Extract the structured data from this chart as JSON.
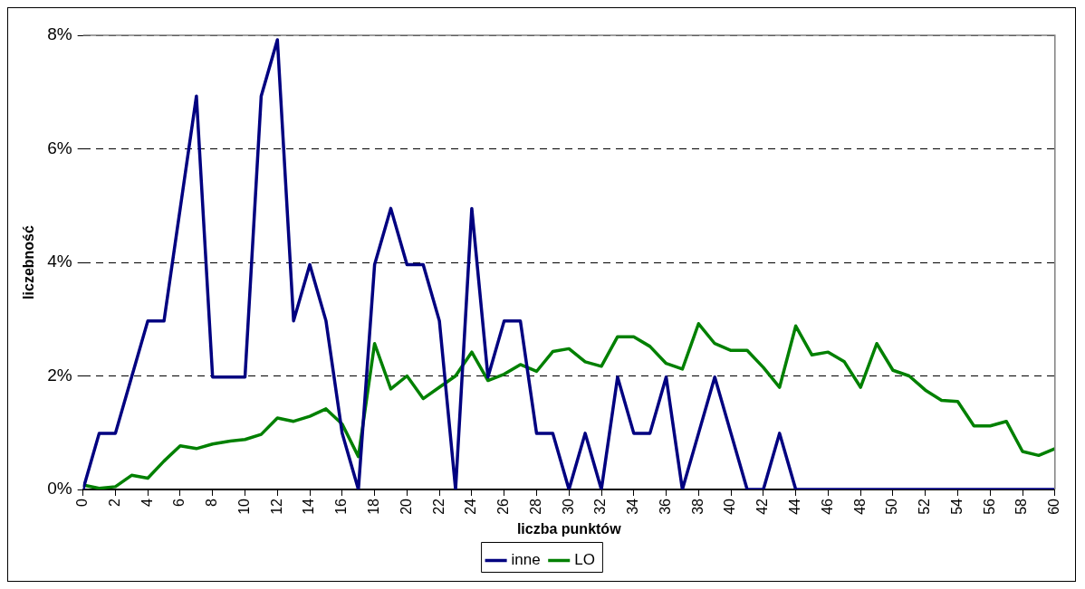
{
  "chart_data": {
    "type": "line",
    "xlabel": "liczba punktów",
    "ylabel": "liczebność",
    "x": [
      0,
      1,
      2,
      3,
      4,
      5,
      6,
      7,
      8,
      9,
      10,
      11,
      12,
      13,
      14,
      15,
      16,
      17,
      18,
      19,
      20,
      21,
      22,
      23,
      24,
      25,
      26,
      27,
      28,
      29,
      30,
      31,
      32,
      33,
      34,
      35,
      36,
      37,
      38,
      39,
      40,
      41,
      42,
      43,
      44,
      45,
      46,
      47,
      48,
      49,
      50,
      51,
      52,
      53,
      54,
      55,
      56,
      57,
      58,
      59,
      60
    ],
    "series": [
      {
        "name": "inne",
        "color": "#000080",
        "values": [
          0,
          0.99,
          0.99,
          1.98,
          2.97,
          2.97,
          4.95,
          6.93,
          1.98,
          1.98,
          1.98,
          6.93,
          7.92,
          2.97,
          3.96,
          2.97,
          0.99,
          0,
          3.96,
          4.95,
          3.96,
          3.96,
          2.97,
          0,
          4.95,
          1.98,
          2.97,
          2.97,
          0.99,
          0.99,
          0,
          0.99,
          0,
          1.98,
          0.99,
          0.99,
          1.98,
          0,
          0.99,
          1.98,
          0.99,
          0,
          0,
          0.99,
          0,
          0,
          0,
          0,
          0,
          0,
          0,
          0,
          0,
          0,
          0,
          0,
          0,
          0,
          0,
          0,
          0
        ]
      },
      {
        "name": "LO",
        "color": "#008000",
        "values": [
          0.08,
          0.02,
          0.05,
          0.25,
          0.2,
          0.5,
          0.77,
          0.72,
          0.8,
          0.85,
          0.88,
          0.97,
          1.26,
          1.2,
          1.29,
          1.42,
          1.15,
          0.58,
          2.57,
          1.77,
          2.0,
          1.6,
          1.8,
          2.0,
          2.42,
          1.92,
          2.03,
          2.2,
          2.08,
          2.43,
          2.48,
          2.25,
          2.17,
          2.69,
          2.69,
          2.52,
          2.22,
          2.12,
          2.92,
          2.57,
          2.45,
          2.45,
          2.15,
          1.8,
          2.88,
          2.37,
          2.42,
          2.25,
          1.8,
          2.57,
          2.1,
          2.0,
          1.75,
          1.57,
          1.55,
          1.12,
          1.12,
          1.2,
          0.67,
          0.6,
          0.72
        ]
      }
    ],
    "xlim": [
      0,
      60
    ],
    "xticks": [
      0,
      2,
      4,
      6,
      8,
      10,
      12,
      14,
      16,
      18,
      20,
      22,
      24,
      26,
      28,
      30,
      32,
      34,
      36,
      38,
      40,
      42,
      44,
      46,
      48,
      50,
      52,
      54,
      56,
      58,
      60
    ],
    "ylim": [
      0,
      8
    ],
    "yticks": [
      {
        "value": 0,
        "label": "0%"
      },
      {
        "value": 2,
        "label": "2%"
      },
      {
        "value": 4,
        "label": "4%"
      },
      {
        "value": 6,
        "label": "6%"
      },
      {
        "value": 8,
        "label": "8%"
      }
    ],
    "grid": "y",
    "legend": "bottom",
    "marker": "none",
    "line_style": "solid"
  }
}
